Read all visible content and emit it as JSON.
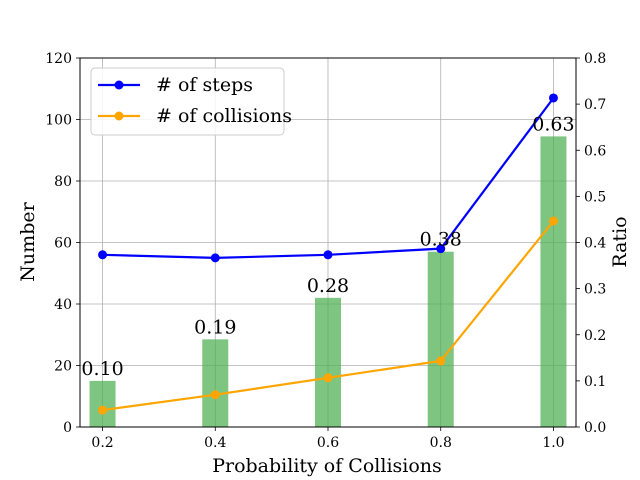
{
  "chart_data": {
    "type": "bar+line",
    "x": [
      0.2,
      0.4,
      0.6,
      0.8,
      1.0
    ],
    "x_tick_labels": [
      "0.2",
      "0.4",
      "0.6",
      "0.8",
      "1.0"
    ],
    "xlabel": "Probability of Collisions",
    "ylabel_left": "Number",
    "ylabel_right": "Ratio",
    "ylim_left": [
      0,
      120
    ],
    "ylim_right": [
      0,
      0.8
    ],
    "y_ticks_left": [
      "0",
      "20",
      "40",
      "60",
      "80",
      "100",
      "120"
    ],
    "y_ticks_right": [
      "0.0",
      "0.1",
      "0.2",
      "0.3",
      "0.4",
      "0.5",
      "0.6",
      "0.7",
      "0.8"
    ],
    "grid": true,
    "legend_position": "top-left",
    "lines": [
      {
        "name": "# of steps",
        "color": "#0000ff",
        "axis": "left",
        "values": [
          56,
          55,
          56,
          58,
          107
        ]
      },
      {
        "name": "# of collisions",
        "color": "#ffa500",
        "axis": "left",
        "values": [
          5.5,
          10.5,
          16,
          21.5,
          67
        ]
      }
    ],
    "bars": {
      "color": "#4caf50",
      "axis": "right",
      "values": [
        0.1,
        0.19,
        0.28,
        0.38,
        0.63
      ]
    },
    "bar_labels": [
      "0.10",
      "0.19",
      "0.28",
      "0.38",
      "0.63"
    ]
  }
}
